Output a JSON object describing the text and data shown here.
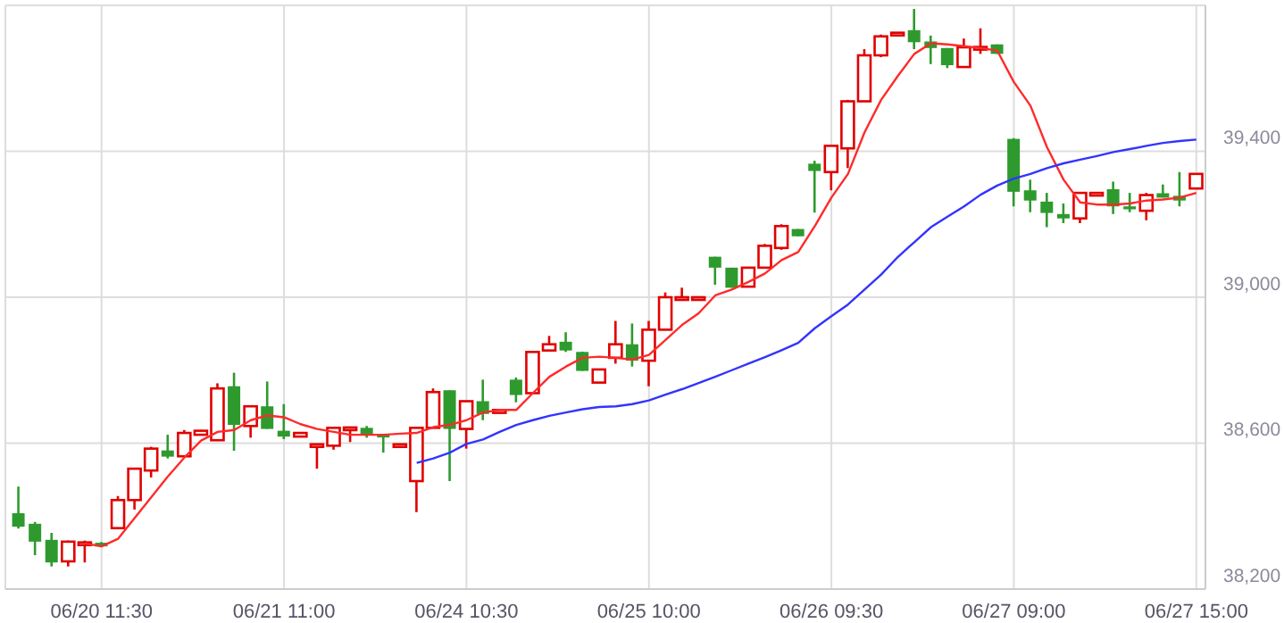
{
  "chart_data": {
    "type": "candlestick",
    "categories": [
      null,
      null,
      null,
      null,
      null,
      "06/20 11:30",
      null,
      null,
      null,
      null,
      null,
      null,
      null,
      null,
      null,
      null,
      "06/21 11:00",
      null,
      null,
      null,
      null,
      null,
      null,
      null,
      null,
      null,
      null,
      "06/24 10:30",
      null,
      null,
      null,
      null,
      null,
      null,
      null,
      null,
      null,
      null,
      "06/25 10:00",
      null,
      null,
      null,
      null,
      null,
      null,
      null,
      null,
      null,
      null,
      "06/26 09:30",
      null,
      null,
      null,
      null,
      null,
      null,
      null,
      null,
      null,
      null,
      "06/27 09:00",
      null,
      null,
      null,
      null,
      null,
      null,
      null,
      null,
      null,
      null,
      "06/27 15:00"
    ],
    "ohlc": [
      [
        38408,
        38481,
        38366,
        38371
      ],
      [
        38379,
        38384,
        38293,
        38330
      ],
      [
        38335,
        38354,
        38262,
        38273
      ],
      [
        38276,
        38333,
        38262,
        38330
      ],
      [
        38325,
        38333,
        38273,
        38328
      ],
      [
        38327,
        38329,
        38315,
        38317
      ],
      [
        38367,
        38455,
        38367,
        38444
      ],
      [
        38444,
        38532,
        38418,
        38530
      ],
      [
        38525,
        38590,
        38506,
        38585
      ],
      [
        38580,
        38623,
        38558,
        38563
      ],
      [
        38564,
        38636,
        38564,
        38628
      ],
      [
        38623,
        38636,
        38621,
        38634
      ],
      [
        38608,
        38764,
        38608,
        38750
      ],
      [
        38756,
        38793,
        38579,
        38650
      ],
      [
        38647,
        38701,
        38615,
        38701
      ],
      [
        38701,
        38769,
        38639,
        38639
      ],
      [
        38634,
        38707,
        38611,
        38618
      ],
      [
        38618,
        38629,
        38617,
        38628
      ],
      [
        38593,
        38597,
        38530,
        38597
      ],
      [
        38593,
        38643,
        38582,
        38642
      ],
      [
        38640,
        38643,
        38603,
        38643
      ],
      [
        38642,
        38647,
        38615,
        38624
      ],
      [
        38623,
        38623,
        38574,
        38618
      ],
      [
        38593,
        38597,
        38590,
        38597
      ],
      [
        38496,
        38643,
        38411,
        38642
      ],
      [
        38642,
        38750,
        38642,
        38740
      ],
      [
        38745,
        38745,
        38496,
        38639
      ],
      [
        38639,
        38715,
        38585,
        38715
      ],
      [
        38715,
        38774,
        38663,
        38680
      ],
      [
        38683,
        38691,
        38683,
        38691
      ],
      [
        38774,
        38780,
        38712,
        38732
      ],
      [
        38737,
        38851,
        38736,
        38850
      ],
      [
        38854,
        38894,
        38854,
        38871
      ],
      [
        38878,
        38904,
        38850,
        38854
      ],
      [
        38850,
        38851,
        38798,
        38798
      ],
      [
        38766,
        38802,
        38766,
        38802
      ],
      [
        38834,
        38935,
        38818,
        38871
      ],
      [
        38871,
        38928,
        38810,
        38826
      ],
      [
        38826,
        38935,
        38756,
        38911
      ],
      [
        38911,
        39013,
        38911,
        39000
      ],
      [
        38998,
        39026,
        38997,
        39000
      ],
      [
        38999,
        39001,
        38997,
        39000
      ],
      [
        39111,
        39111,
        39034,
        39081
      ],
      [
        39081,
        39081,
        39026,
        39026
      ],
      [
        39029,
        39081,
        39029,
        39081
      ],
      [
        39081,
        39146,
        39081,
        39141
      ],
      [
        39135,
        39200,
        39130,
        39195
      ],
      [
        39187,
        39187,
        39167,
        39167
      ],
      [
        39366,
        39374,
        39232,
        39346
      ],
      [
        39343,
        39415,
        39293,
        39415
      ],
      [
        39408,
        39541,
        39354,
        39537
      ],
      [
        39537,
        39680,
        39537,
        39663
      ],
      [
        39663,
        39720,
        39658,
        39715
      ],
      [
        39718,
        39725,
        39716,
        39725
      ],
      [
        39732,
        39790,
        39680,
        39699
      ],
      [
        39701,
        39717,
        39639,
        39683
      ],
      [
        39683,
        39683,
        39628,
        39636
      ],
      [
        39631,
        39709,
        39631,
        39685
      ],
      [
        39680,
        39737,
        39667,
        39686
      ],
      [
        39693,
        39693,
        39667,
        39667
      ],
      [
        39434,
        39436,
        39249,
        39289
      ],
      [
        39293,
        39322,
        39233,
        39265
      ],
      [
        39262,
        39286,
        39192,
        39231
      ],
      [
        39228,
        39257,
        39203,
        39216
      ],
      [
        39216,
        39286,
        39203,
        39286
      ],
      [
        39280,
        39286,
        39278,
        39286
      ],
      [
        39296,
        39317,
        39228,
        39249
      ],
      [
        39249,
        39286,
        39233,
        39241
      ],
      [
        39237,
        39286,
        39211,
        39280
      ],
      [
        39285,
        39309,
        39273,
        39273
      ],
      [
        39278,
        39343,
        39249,
        39265
      ],
      [
        39298,
        39338,
        39296,
        39338
      ]
    ],
    "series": [
      {
        "type": "line",
        "color": "#ff2a2a",
        "values": [
          null,
          null,
          null,
          null,
          38325,
          38317,
          38338,
          38395,
          38452,
          38509,
          38561,
          38607,
          38631,
          38636,
          38663,
          38676,
          38671,
          38652,
          38639,
          38631,
          38623,
          38623,
          38623,
          38626,
          38628,
          38644,
          38650,
          38663,
          38684,
          38691,
          38691,
          38737,
          38782,
          38810,
          38834,
          38837,
          38834,
          38829,
          38842,
          38883,
          38924,
          38956,
          39005,
          39021,
          39042,
          39065,
          39102,
          39124,
          39195,
          39273,
          39338,
          39452,
          39541,
          39606,
          39667,
          39696,
          39693,
          39688,
          39683,
          39676,
          39590,
          39525,
          39411,
          39322,
          39260,
          39254,
          39254,
          39257,
          39265,
          39268,
          39273,
          39286
        ]
      },
      {
        "type": "line",
        "color": "#3333ff",
        "values": [
          null,
          null,
          null,
          null,
          null,
          null,
          null,
          null,
          null,
          null,
          null,
          null,
          null,
          null,
          null,
          null,
          null,
          null,
          null,
          null,
          null,
          null,
          null,
          null,
          38546,
          38558,
          38574,
          38598,
          38610,
          38631,
          38650,
          38663,
          38675,
          38684,
          38693,
          38699,
          38701,
          38707,
          38717,
          38733,
          38748,
          38765,
          38782,
          38800,
          38818,
          38836,
          38855,
          38875,
          38915,
          38948,
          38980,
          39021,
          39062,
          39110,
          39151,
          39192,
          39221,
          39249,
          39281,
          39306,
          39325,
          39338,
          39354,
          39367,
          39377,
          39387,
          39398,
          39406,
          39415,
          39423,
          39428,
          39432
        ]
      }
    ],
    "ylim": [
      38200,
      39800
    ],
    "yticks": [
      {
        "value": 38200,
        "label": "38,200"
      },
      {
        "value": 38600,
        "label": "38,600"
      },
      {
        "value": 39000,
        "label": "39,000"
      },
      {
        "value": 39400,
        "label": "39,400"
      }
    ],
    "grid": true,
    "marker": "none"
  }
}
